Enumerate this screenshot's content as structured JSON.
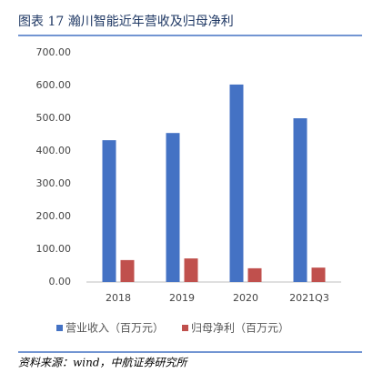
{
  "chart_data": {
    "type": "bar",
    "title": "图表 17 瀚川智能近年营收及归母净利",
    "source": "资料来源：wind，中航证券研究所",
    "categories": [
      "2018",
      "2019",
      "2020",
      "2021Q3"
    ],
    "series": [
      {
        "name": "营业收入（百万元）",
        "color": "#4472c4",
        "values": [
          433,
          455,
          603,
          500
        ]
      },
      {
        "name": "归母净利（百万元）",
        "color": "#c0504d",
        "values": [
          67,
          72,
          42,
          44
        ]
      }
    ],
    "ylim": [
      0,
      700
    ],
    "yticks": [
      {
        "value": 0,
        "label": "0.00"
      },
      {
        "value": 100,
        "label": "100.00"
      },
      {
        "value": 200,
        "label": "200.00"
      },
      {
        "value": 300,
        "label": "300.00"
      },
      {
        "value": 400,
        "label": "400.00"
      },
      {
        "value": 500,
        "label": "500.00"
      },
      {
        "value": 600,
        "label": "600.00"
      },
      {
        "value": 700,
        "label": "700.00"
      }
    ],
    "grid": false,
    "legend": "bottom"
  }
}
